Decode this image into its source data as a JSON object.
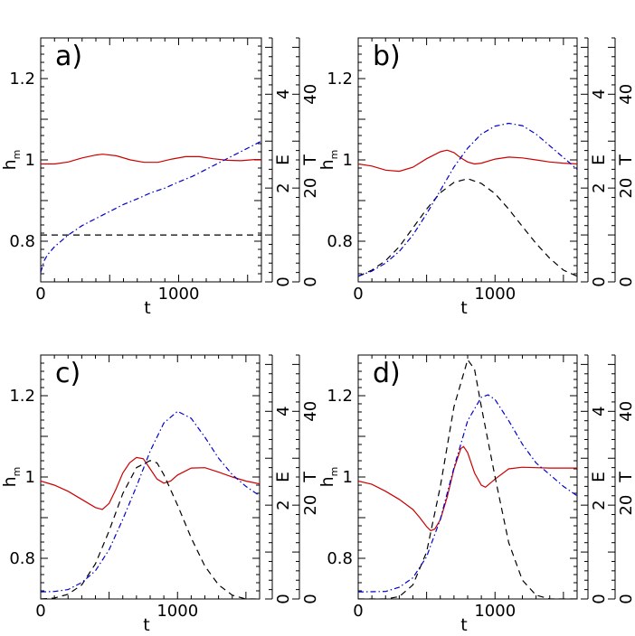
{
  "figure": {
    "name": "four-panel-time-series"
  },
  "colors": {
    "hm": "#cc0000",
    "E": "#000000",
    "T": "#0000cc",
    "axes": "#000000"
  },
  "chart_data": [
    {
      "type": "line",
      "panel": "a)",
      "xlabel": "t",
      "xlim": [
        0,
        1600
      ],
      "xticks": [
        0,
        1000
      ],
      "ylabel": "h",
      "ylabel_sub": "m",
      "ylim": [
        0.7,
        1.3
      ],
      "yticks": [
        "0.8",
        "1",
        "1.2"
      ],
      "right_axes": [
        {
          "label": "E",
          "lim": [
            0,
            5.2
          ],
          "ticks": [
            "0",
            "2",
            "4"
          ]
        },
        {
          "label": "T",
          "lim": [
            0,
            52
          ],
          "ticks": [
            "0",
            "20",
            "40"
          ]
        }
      ],
      "series": [
        {
          "name": "h_m",
          "axis": "hm",
          "style": "solid",
          "color": "#cc0000",
          "points": [
            [
              0,
              0.99
            ],
            [
              100,
              0.99
            ],
            [
              200,
              0.995
            ],
            [
              300,
              1.005
            ],
            [
              400,
              1.012
            ],
            [
              450,
              1.014
            ],
            [
              550,
              1.01
            ],
            [
              650,
              1.0
            ],
            [
              750,
              0.994
            ],
            [
              850,
              0.994
            ],
            [
              950,
              1.002
            ],
            [
              1050,
              1.008
            ],
            [
              1150,
              1.008
            ],
            [
              1250,
              1.003
            ],
            [
              1350,
              0.999
            ],
            [
              1450,
              0.998
            ],
            [
              1550,
              1.001
            ],
            [
              1600,
              1.001
            ]
          ]
        },
        {
          "name": "E",
          "axis": "E",
          "style": "dashed",
          "color": "#000000",
          "points": [
            [
              0,
              1.0
            ],
            [
              1600,
              1.0
            ]
          ]
        },
        {
          "name": "T",
          "axis": "T",
          "style": "dashdot",
          "color": "#0000cc",
          "points": [
            [
              0,
              2
            ],
            [
              25,
              4.5
            ],
            [
              50,
              5.8
            ],
            [
              100,
              7.5
            ],
            [
              200,
              10
            ],
            [
              300,
              12
            ],
            [
              400,
              13.5
            ],
            [
              500,
              15
            ],
            [
              600,
              16.5
            ],
            [
              700,
              17.7
            ],
            [
              800,
              19
            ],
            [
              900,
              20
            ],
            [
              1000,
              21.3
            ],
            [
              1100,
              22.5
            ],
            [
              1200,
              24
            ],
            [
              1300,
              25.5
            ],
            [
              1400,
              27
            ],
            [
              1500,
              28.5
            ],
            [
              1600,
              30
            ]
          ]
        }
      ]
    },
    {
      "type": "line",
      "panel": "b)",
      "xlabel": "t",
      "xlim": [
        0,
        1600
      ],
      "xticks": [
        0,
        1000
      ],
      "ylabel": "h",
      "ylabel_sub": "m",
      "ylim": [
        0.7,
        1.3
      ],
      "yticks": [
        "0.8",
        "1",
        "1.2"
      ],
      "right_axes": [
        {
          "label": "E",
          "lim": [
            0,
            5.2
          ],
          "ticks": [
            "0",
            "2",
            "4"
          ]
        },
        {
          "label": "T",
          "lim": [
            0,
            52
          ],
          "ticks": [
            "0",
            "20",
            "40"
          ]
        }
      ],
      "series": [
        {
          "name": "h_m",
          "axis": "hm",
          "style": "solid",
          "color": "#cc0000",
          "points": [
            [
              0,
              0.99
            ],
            [
              100,
              0.985
            ],
            [
              200,
              0.975
            ],
            [
              300,
              0.972
            ],
            [
              400,
              0.982
            ],
            [
              500,
              1.003
            ],
            [
              600,
              1.02
            ],
            [
              650,
              1.024
            ],
            [
              700,
              1.018
            ],
            [
              750,
              1.005
            ],
            [
              800,
              0.995
            ],
            [
              850,
              0.99
            ],
            [
              900,
              0.992
            ],
            [
              1000,
              1.002
            ],
            [
              1100,
              1.007
            ],
            [
              1200,
              1.005
            ],
            [
              1300,
              1.0
            ],
            [
              1400,
              0.995
            ],
            [
              1500,
              0.992
            ],
            [
              1600,
              0.99
            ]
          ]
        },
        {
          "name": "E",
          "axis": "E",
          "style": "dashed",
          "color": "#000000",
          "points": [
            [
              0,
              0.12
            ],
            [
              100,
              0.25
            ],
            [
              200,
              0.45
            ],
            [
              300,
              0.75
            ],
            [
              400,
              1.15
            ],
            [
              500,
              1.55
            ],
            [
              600,
              1.9
            ],
            [
              700,
              2.12
            ],
            [
              800,
              2.2
            ],
            [
              900,
              2.1
            ],
            [
              1000,
              1.88
            ],
            [
              1100,
              1.55
            ],
            [
              1200,
              1.18
            ],
            [
              1300,
              0.82
            ],
            [
              1400,
              0.5
            ],
            [
              1500,
              0.25
            ],
            [
              1600,
              0.12
            ]
          ]
        },
        {
          "name": "T",
          "axis": "T",
          "style": "dashdot",
          "color": "#0000cc",
          "points": [
            [
              0,
              1.2
            ],
            [
              100,
              2.3
            ],
            [
              200,
              4
            ],
            [
              300,
              6.5
            ],
            [
              400,
              10
            ],
            [
              500,
              14.5
            ],
            [
              600,
              19.5
            ],
            [
              700,
              24.5
            ],
            [
              800,
              28.5
            ],
            [
              900,
              31.5
            ],
            [
              1000,
              33.2
            ],
            [
              1100,
              33.8
            ],
            [
              1200,
              33.3
            ],
            [
              1300,
              31.5
            ],
            [
              1400,
              29
            ],
            [
              1500,
              26.5
            ],
            [
              1600,
              24
            ]
          ]
        }
      ]
    },
    {
      "type": "line",
      "panel": "c)",
      "xlabel": "t",
      "xlim": [
        0,
        1600
      ],
      "xticks": [
        0,
        1000
      ],
      "ylabel": "h",
      "ylabel_sub": "m",
      "ylim": [
        0.7,
        1.3
      ],
      "yticks": [
        "0.8",
        "1",
        "1.2"
      ],
      "right_axes": [
        {
          "label": "E",
          "lim": [
            0,
            5.2
          ],
          "ticks": [
            "0",
            "2",
            "4"
          ]
        },
        {
          "label": "T",
          "lim": [
            0,
            52
          ],
          "ticks": [
            "0",
            "20",
            "40"
          ]
        }
      ],
      "series": [
        {
          "name": "h_m",
          "axis": "hm",
          "style": "solid",
          "color": "#cc0000",
          "points": [
            [
              0,
              0.99
            ],
            [
              100,
              0.98
            ],
            [
              200,
              0.965
            ],
            [
              300,
              0.945
            ],
            [
              400,
              0.925
            ],
            [
              450,
              0.92
            ],
            [
              500,
              0.935
            ],
            [
              550,
              0.97
            ],
            [
              600,
              1.01
            ],
            [
              650,
              1.035
            ],
            [
              700,
              1.048
            ],
            [
              750,
              1.045
            ],
            [
              800,
              1.02
            ],
            [
              850,
              0.995
            ],
            [
              900,
              0.985
            ],
            [
              950,
              0.99
            ],
            [
              1000,
              1.005
            ],
            [
              1100,
              1.022
            ],
            [
              1200,
              1.023
            ],
            [
              1300,
              1.012
            ],
            [
              1400,
              1.0
            ],
            [
              1500,
              0.99
            ],
            [
              1600,
              0.983
            ]
          ]
        },
        {
          "name": "E",
          "axis": "E",
          "style": "dashed",
          "color": "#000000",
          "points": [
            [
              0,
              0.0
            ],
            [
              100,
              0.02
            ],
            [
              200,
              0.1
            ],
            [
              300,
              0.3
            ],
            [
              400,
              0.75
            ],
            [
              500,
              1.45
            ],
            [
              600,
              2.25
            ],
            [
              700,
              2.8
            ],
            [
              800,
              2.95
            ],
            [
              850,
              2.9
            ],
            [
              900,
              2.65
            ],
            [
              1000,
              2.0
            ],
            [
              1100,
              1.3
            ],
            [
              1200,
              0.7
            ],
            [
              1300,
              0.3
            ],
            [
              1400,
              0.08
            ],
            [
              1500,
              0.0
            ],
            [
              1600,
              0.0
            ]
          ]
        },
        {
          "name": "T",
          "axis": "T",
          "style": "dashdot",
          "color": "#0000cc",
          "points": [
            [
              0,
              1.5
            ],
            [
              100,
              1.6
            ],
            [
              200,
              2
            ],
            [
              300,
              3.5
            ],
            [
              400,
              6
            ],
            [
              500,
              10.5
            ],
            [
              600,
              17
            ],
            [
              700,
              24
            ],
            [
              800,
              31.5
            ],
            [
              900,
              37.5
            ],
            [
              1000,
              40
            ],
            [
              1100,
              38.5
            ],
            [
              1200,
              34.5
            ],
            [
              1300,
              30
            ],
            [
              1400,
              26.5
            ],
            [
              1500,
              24
            ],
            [
              1600,
              22
            ]
          ]
        }
      ]
    },
    {
      "type": "line",
      "panel": "d)",
      "xlabel": "t",
      "xlim": [
        0,
        1600
      ],
      "xticks": [
        0,
        1000
      ],
      "ylabel": "h",
      "ylabel_sub": "m",
      "ylim": [
        0.7,
        1.3
      ],
      "yticks": [
        "0.8",
        "1",
        "1.2"
      ],
      "right_axes": [
        {
          "label": "E",
          "lim": [
            0,
            5.2
          ],
          "ticks": [
            "0",
            "2",
            "4"
          ]
        },
        {
          "label": "T",
          "lim": [
            0,
            52
          ],
          "ticks": [
            "0",
            "20",
            "40"
          ]
        }
      ],
      "series": [
        {
          "name": "h_m",
          "axis": "hm",
          "style": "solid",
          "color": "#cc0000",
          "points": [
            [
              0,
              0.99
            ],
            [
              100,
              0.982
            ],
            [
              200,
              0.965
            ],
            [
              300,
              0.945
            ],
            [
              400,
              0.92
            ],
            [
              450,
              0.9
            ],
            [
              500,
              0.878
            ],
            [
              530,
              0.868
            ],
            [
              560,
              0.872
            ],
            [
              600,
              0.895
            ],
            [
              650,
              0.95
            ],
            [
              700,
              1.02
            ],
            [
              750,
              1.07
            ],
            [
              770,
              1.075
            ],
            [
              800,
              1.06
            ],
            [
              850,
              1.01
            ],
            [
              900,
              0.98
            ],
            [
              930,
              0.975
            ],
            [
              1000,
              0.995
            ],
            [
              1100,
              1.02
            ],
            [
              1200,
              1.024
            ],
            [
              1300,
              1.023
            ],
            [
              1400,
              1.022
            ],
            [
              1500,
              1.022
            ],
            [
              1600,
              1.022
            ]
          ]
        },
        {
          "name": "E",
          "axis": "E",
          "style": "dashed",
          "color": "#000000",
          "points": [
            [
              0,
              0.0
            ],
            [
              200,
              0.0
            ],
            [
              300,
              0.05
            ],
            [
              400,
              0.3
            ],
            [
              500,
              1.0
            ],
            [
              600,
              2.4
            ],
            [
              700,
              4.1
            ],
            [
              800,
              5.1
            ],
            [
              850,
              4.9
            ],
            [
              900,
              4.1
            ],
            [
              1000,
              2.6
            ],
            [
              1100,
              1.2
            ],
            [
              1200,
              0.4
            ],
            [
              1300,
              0.08
            ],
            [
              1400,
              0.0
            ],
            [
              1600,
              0.0
            ]
          ]
        },
        {
          "name": "T",
          "axis": "T",
          "style": "dashdot",
          "color": "#0000cc",
          "points": [
            [
              0,
              1.5
            ],
            [
              200,
              1.6
            ],
            [
              300,
              2.5
            ],
            [
              400,
              4.5
            ],
            [
              500,
              9
            ],
            [
              600,
              17
            ],
            [
              700,
              28
            ],
            [
              800,
              38
            ],
            [
              900,
              43
            ],
            [
              950,
              43.5
            ],
            [
              1000,
              42.5
            ],
            [
              1100,
              38
            ],
            [
              1200,
              33
            ],
            [
              1300,
              29
            ],
            [
              1400,
              26.5
            ],
            [
              1500,
              24
            ],
            [
              1600,
              22
            ]
          ]
        }
      ]
    }
  ]
}
